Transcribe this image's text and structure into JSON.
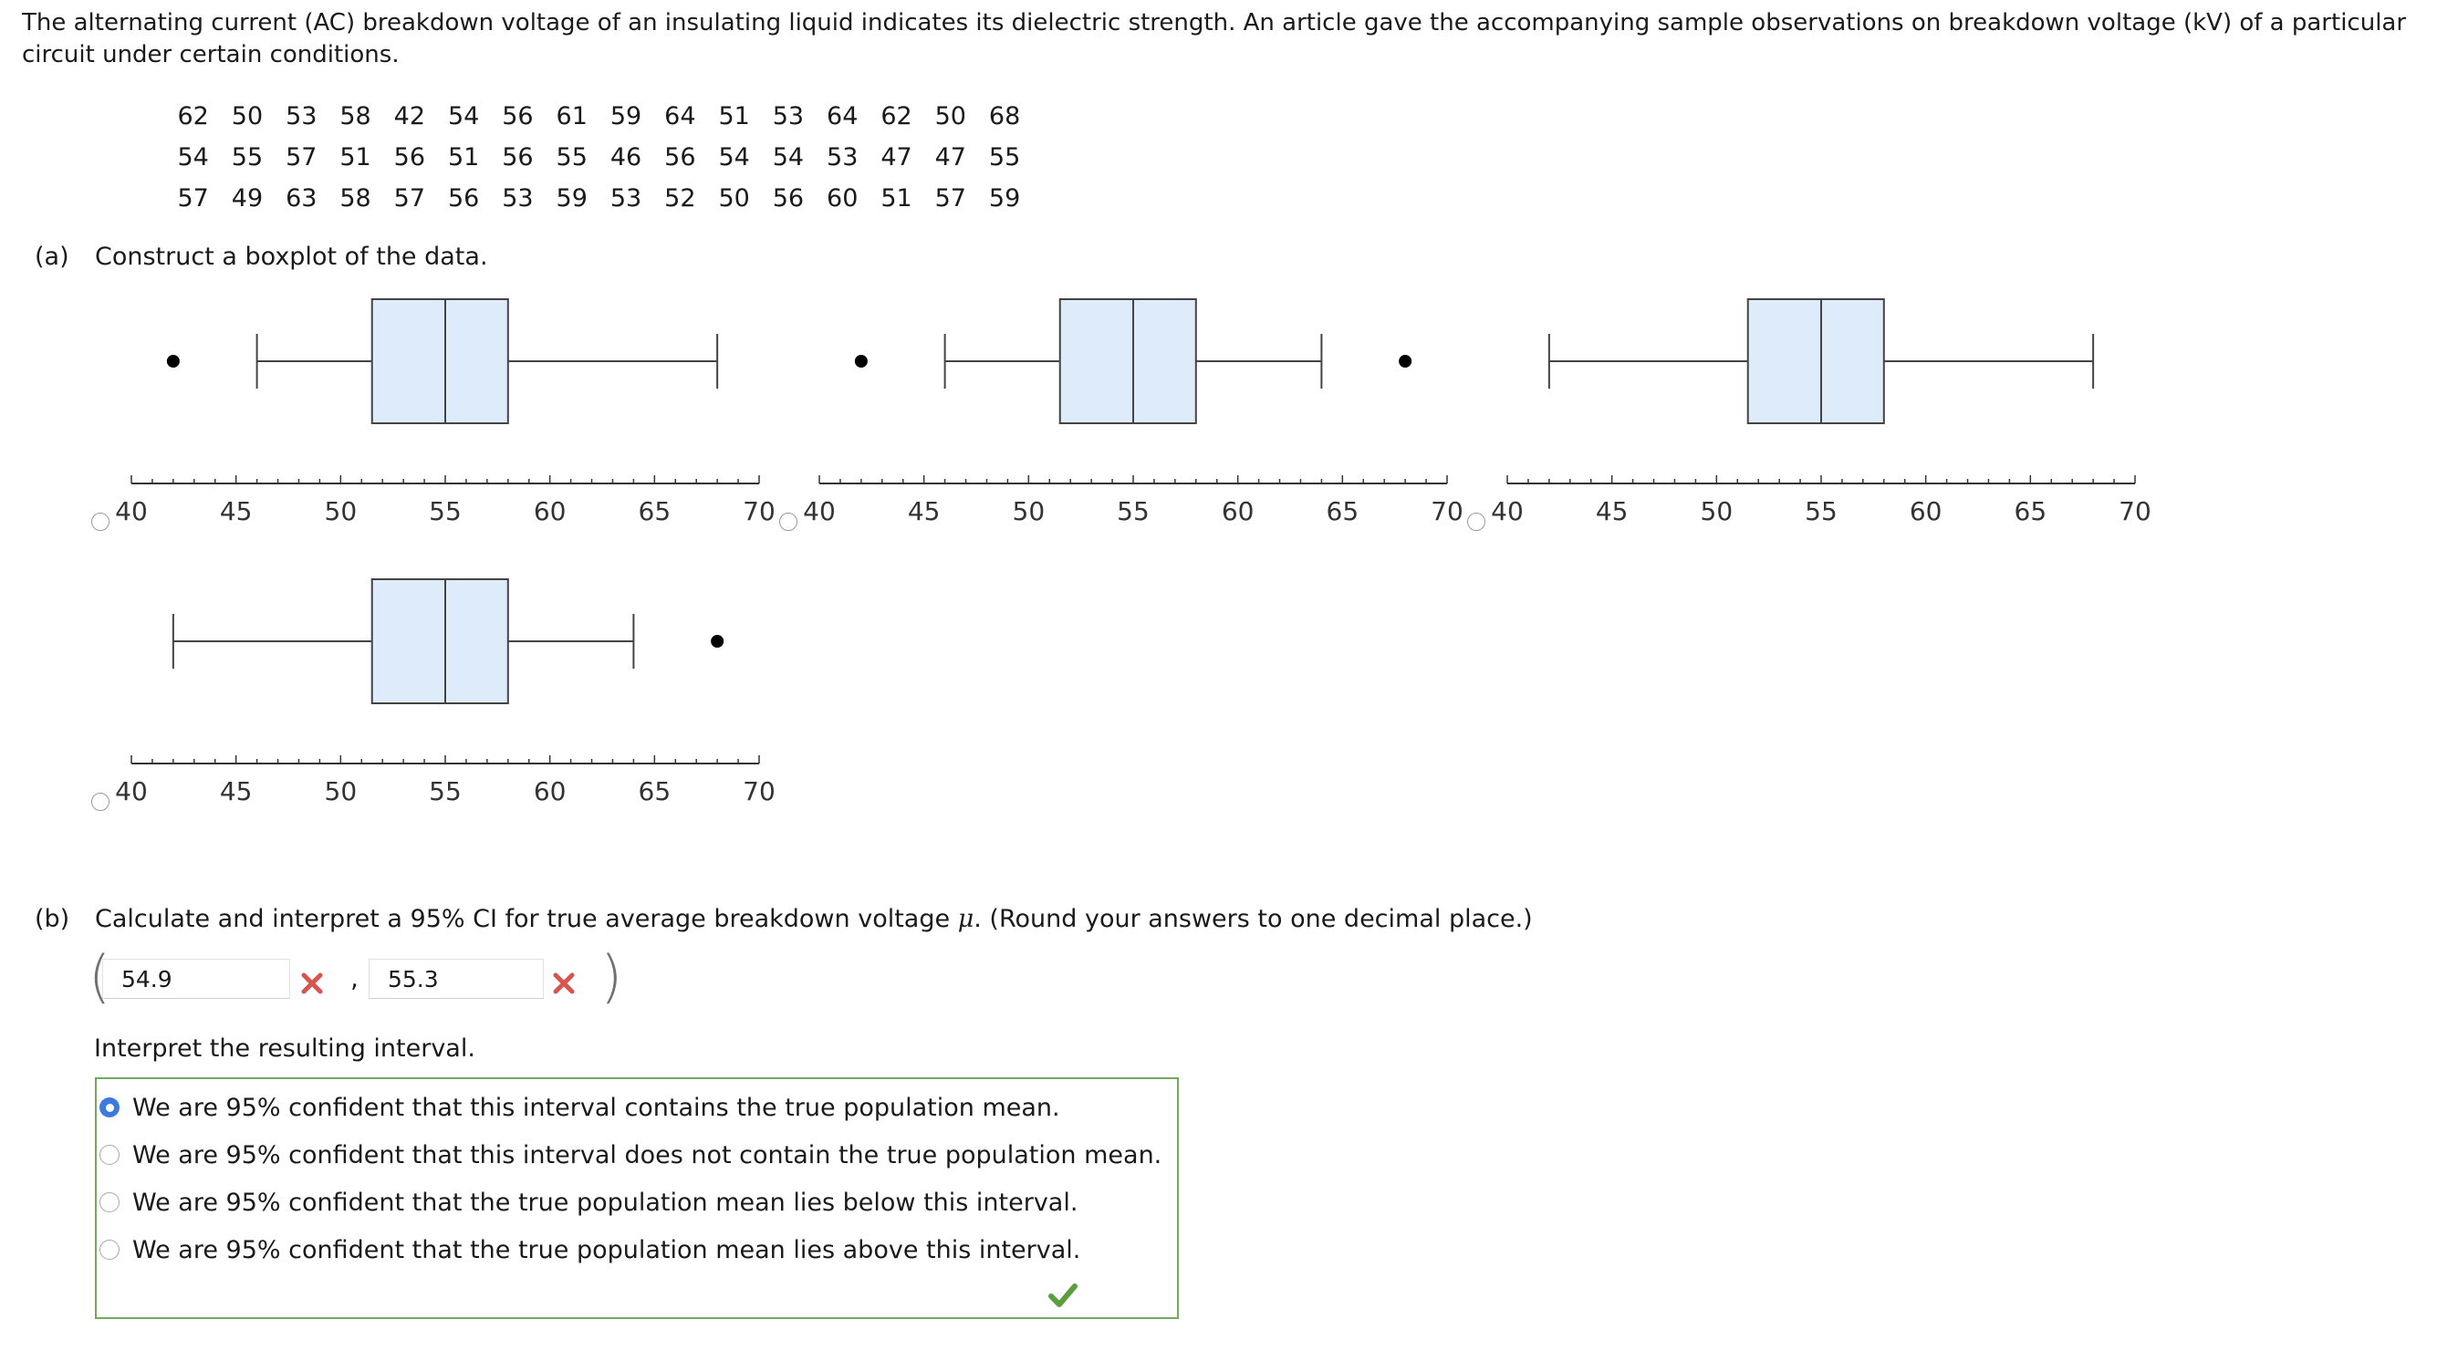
{
  "intro": "The alternating current (AC) breakdown voltage of an insulating liquid indicates its dielectric strength. An article gave the accompanying sample observations on breakdown voltage (kV) of a particular circuit under certain conditions.",
  "data_rows": [
    [
      "62",
      "50",
      "53",
      "58",
      "42",
      "54",
      "56",
      "61",
      "59",
      "64",
      "51",
      "53",
      "64",
      "62",
      "50",
      "68"
    ],
    [
      "54",
      "55",
      "57",
      "51",
      "56",
      "51",
      "56",
      "55",
      "46",
      "56",
      "54",
      "54",
      "53",
      "47",
      "47",
      "55"
    ],
    [
      "57",
      "49",
      "63",
      "58",
      "57",
      "56",
      "53",
      "59",
      "53",
      "52",
      "50",
      "56",
      "60",
      "51",
      "57",
      "59"
    ]
  ],
  "part_a": {
    "tag": "(a)",
    "text": "Construct a boxplot of the data."
  },
  "boxplot_axis": {
    "min": 40,
    "max": 70,
    "tick_labels": [
      "40",
      "45",
      "50",
      "55",
      "60",
      "65",
      "70"
    ]
  },
  "boxplot_options": [
    {
      "whisker_low": 46,
      "q1": 51.5,
      "median": 55,
      "q3": 58,
      "whisker_high": 68,
      "outliers": [
        42
      ],
      "selected": false
    },
    {
      "whisker_low": 46,
      "q1": 51.5,
      "median": 55,
      "q3": 58,
      "whisker_high": 64,
      "outliers": [
        42,
        68
      ],
      "selected": false
    },
    {
      "whisker_low": 42,
      "q1": 51.5,
      "median": 55,
      "q3": 58,
      "whisker_high": 68,
      "outliers": [],
      "selected": false
    },
    {
      "whisker_low": 42,
      "q1": 51.5,
      "median": 55,
      "q3": 58,
      "whisker_high": 64,
      "outliers": [
        68
      ],
      "selected": false
    }
  ],
  "box_fill": "#deebfb",
  "part_b": {
    "tag": "(b)",
    "text_before": "Calculate and interpret a 95% CI for true average breakdown voltage ",
    "mu": "μ",
    "text_after": ". (Round your answers to one decimal place.)",
    "lower": "54.9",
    "upper": "55.3",
    "lower_status": "incorrect",
    "upper_status": "incorrect",
    "comma": ","
  },
  "interpret": {
    "label": "Interpret the resulting interval.",
    "choices": [
      "We are 95% confident that this interval contains the true population mean.",
      "We are 95% confident that this interval does not contain the true population mean.",
      "We are 95% confident that the true population mean lies below this interval.",
      "We are 95% confident that the true population mean lies above this interval."
    ],
    "selected_index": 0,
    "status": "correct"
  },
  "colors": {
    "incorrect": "#d9534f",
    "correct": "#5c9e3f",
    "selected_radio": "#3b7be0",
    "box_border": "#74a85a"
  }
}
